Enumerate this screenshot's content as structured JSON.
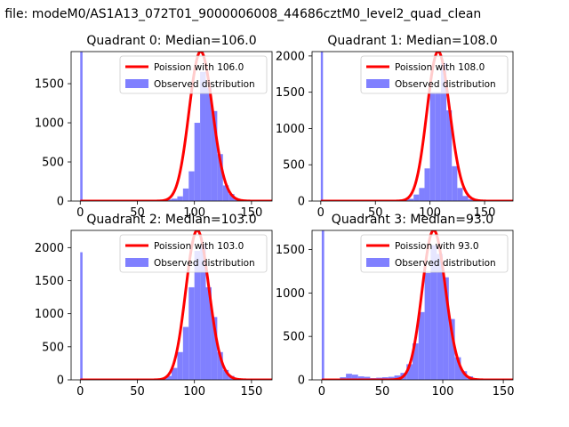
{
  "figure": {
    "suptitle": "n file: modeM0/AS1A13_072T01_9000006008_44686cztM0_level2_quad_clean"
  },
  "chart_data": [
    {
      "type": "bar",
      "title": "Quadrant 0: Median=106.0",
      "xlim": [
        -8,
        168
      ],
      "ylim": [
        0,
        1910
      ],
      "xticks": [
        0,
        50,
        100,
        150
      ],
      "yticks": [
        0,
        500,
        1000,
        1500
      ],
      "median": 106.0,
      "zero_bin_count": 1910,
      "hist_bins": [
        [
          70,
          15
        ],
        [
          75,
          20
        ],
        [
          80,
          30
        ],
        [
          85,
          60
        ],
        [
          90,
          160
        ],
        [
          95,
          380
        ],
        [
          100,
          1000
        ],
        [
          105,
          1650
        ],
        [
          110,
          1450
        ],
        [
          115,
          1150
        ],
        [
          120,
          600
        ],
        [
          125,
          200
        ],
        [
          130,
          90
        ],
        [
          135,
          30
        ],
        [
          140,
          12
        ],
        [
          145,
          4
        ]
      ],
      "legend_location": "upper right",
      "legend": [
        {
          "label": "Poission with 106.0",
          "color": "#ff0000",
          "kind": "line"
        },
        {
          "label": "Observed distribution",
          "color": "#8080ff",
          "kind": "patch"
        }
      ]
    },
    {
      "type": "bar",
      "title": "Quadrant 1: Median=108.0",
      "xlim": [
        -8,
        176
      ],
      "ylim": [
        0,
        2060
      ],
      "xticks": [
        0,
        50,
        100,
        150
      ],
      "yticks": [
        0,
        500,
        1000,
        1500,
        2000
      ],
      "median": 108.0,
      "zero_bin_count": 2060,
      "hist_bins": [
        [
          70,
          10
        ],
        [
          75,
          15
        ],
        [
          80,
          30
        ],
        [
          85,
          90
        ],
        [
          90,
          180
        ],
        [
          95,
          450
        ],
        [
          100,
          1500
        ],
        [
          105,
          1500
        ],
        [
          110,
          1900
        ],
        [
          115,
          1250
        ],
        [
          120,
          480
        ],
        [
          125,
          180
        ],
        [
          130,
          70
        ],
        [
          135,
          25
        ],
        [
          140,
          10
        ]
      ],
      "legend_location": "upper right",
      "legend": [
        {
          "label": "Poission with 108.0",
          "color": "#ff0000",
          "kind": "line"
        },
        {
          "label": "Observed distribution",
          "color": "#8080ff",
          "kind": "patch"
        }
      ]
    },
    {
      "type": "bar",
      "title": "Quadrant 2: Median=103.0",
      "xlim": [
        -8,
        168
      ],
      "ylim": [
        0,
        2260
      ],
      "xticks": [
        0,
        50,
        100,
        150
      ],
      "yticks": [
        0,
        500,
        1000,
        1500,
        2000
      ],
      "median": 103.0,
      "zero_bin_count": 1930,
      "hist_bins": [
        [
          65,
          10
        ],
        [
          70,
          20
        ],
        [
          75,
          60
        ],
        [
          80,
          180
        ],
        [
          85,
          420
        ],
        [
          90,
          800
        ],
        [
          95,
          1400
        ],
        [
          100,
          1950
        ],
        [
          105,
          2050
        ],
        [
          110,
          1400
        ],
        [
          115,
          950
        ],
        [
          120,
          420
        ],
        [
          125,
          150
        ],
        [
          130,
          60
        ],
        [
          135,
          20
        ],
        [
          140,
          8
        ]
      ],
      "legend_location": "upper right",
      "legend": [
        {
          "label": "Poission with 103.0",
          "color": "#ff0000",
          "kind": "line"
        },
        {
          "label": "Observed distribution",
          "color": "#8080ff",
          "kind": "patch"
        }
      ]
    },
    {
      "type": "bar",
      "title": "Quadrant 3: Median=93.0",
      "xlim": [
        -8,
        158
      ],
      "ylim": [
        0,
        1720
      ],
      "xticks": [
        0,
        50,
        100,
        150
      ],
      "yticks": [
        0,
        500,
        1000,
        1500
      ],
      "median": 93.0,
      "zero_bin_count": 1720,
      "hist_bins": [
        [
          15,
          30
        ],
        [
          20,
          70
        ],
        [
          25,
          60
        ],
        [
          30,
          40
        ],
        [
          35,
          35
        ],
        [
          40,
          20
        ],
        [
          45,
          25
        ],
        [
          50,
          30
        ],
        [
          55,
          35
        ],
        [
          60,
          50
        ],
        [
          65,
          80
        ],
        [
          70,
          180
        ],
        [
          75,
          420
        ],
        [
          80,
          780
        ],
        [
          85,
          1230
        ],
        [
          90,
          1550
        ],
        [
          95,
          1450
        ],
        [
          100,
          1180
        ],
        [
          105,
          700
        ],
        [
          110,
          260
        ],
        [
          115,
          100
        ],
        [
          120,
          40
        ],
        [
          125,
          15
        ]
      ],
      "legend_location": "upper right",
      "legend": [
        {
          "label": "Poission with 93.0",
          "color": "#ff0000",
          "kind": "line"
        },
        {
          "label": "Observed distribution",
          "color": "#8080ff",
          "kind": "patch"
        }
      ]
    }
  ]
}
